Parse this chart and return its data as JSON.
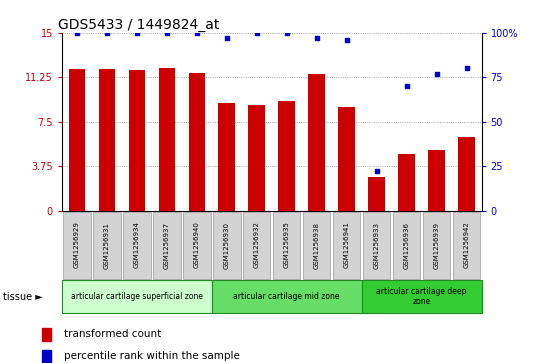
{
  "title": "GDS5433 / 1449824_at",
  "samples": [
    "GSM1256929",
    "GSM1256931",
    "GSM1256934",
    "GSM1256937",
    "GSM1256940",
    "GSM1256930",
    "GSM1256932",
    "GSM1256935",
    "GSM1256938",
    "GSM1256941",
    "GSM1256933",
    "GSM1256936",
    "GSM1256939",
    "GSM1256942"
  ],
  "transformed_count": [
    11.9,
    11.9,
    11.85,
    12.0,
    11.6,
    9.1,
    8.9,
    9.2,
    11.5,
    8.7,
    2.8,
    4.8,
    5.1,
    6.2
  ],
  "percentile_rank": [
    100,
    100,
    100,
    100,
    100,
    97,
    100,
    100,
    97,
    96,
    22,
    70,
    77,
    80
  ],
  "bar_color": "#cc0000",
  "dot_color": "#0000cc",
  "ylim_left": [
    0,
    15
  ],
  "ylim_right": [
    0,
    100
  ],
  "yticks_left": [
    0,
    3.75,
    7.5,
    11.25,
    15
  ],
  "yticks_right": [
    0,
    25,
    50,
    75,
    100
  ],
  "ytick_labels_left": [
    "0",
    "3.75",
    "7.5",
    "11.25",
    "15"
  ],
  "ytick_labels_right": [
    "0",
    "25",
    "50",
    "75",
    "100%"
  ],
  "left_tick_color": "#cc0000",
  "right_tick_color": "#0000cc",
  "groups": [
    {
      "label": "articular cartilage superficial zone",
      "start": 0,
      "end": 5,
      "color": "#ccffcc"
    },
    {
      "label": "articular cartilage mid zone",
      "start": 5,
      "end": 10,
      "color": "#66dd66"
    },
    {
      "label": "articular cartilage deep\nzone",
      "start": 10,
      "end": 14,
      "color": "#33cc33"
    }
  ],
  "tissue_label": "tissue ►",
  "legend_bar_label": "transformed count",
  "legend_dot_label": "percentile rank within the sample",
  "xticklabel_bg_color": "#d3d3d3",
  "xticklabel_border_color": "#999999",
  "dotted_line_color": "#888888",
  "bar_width": 0.55,
  "group_edge_color": "#228B22",
  "bg_color": "#ffffff"
}
